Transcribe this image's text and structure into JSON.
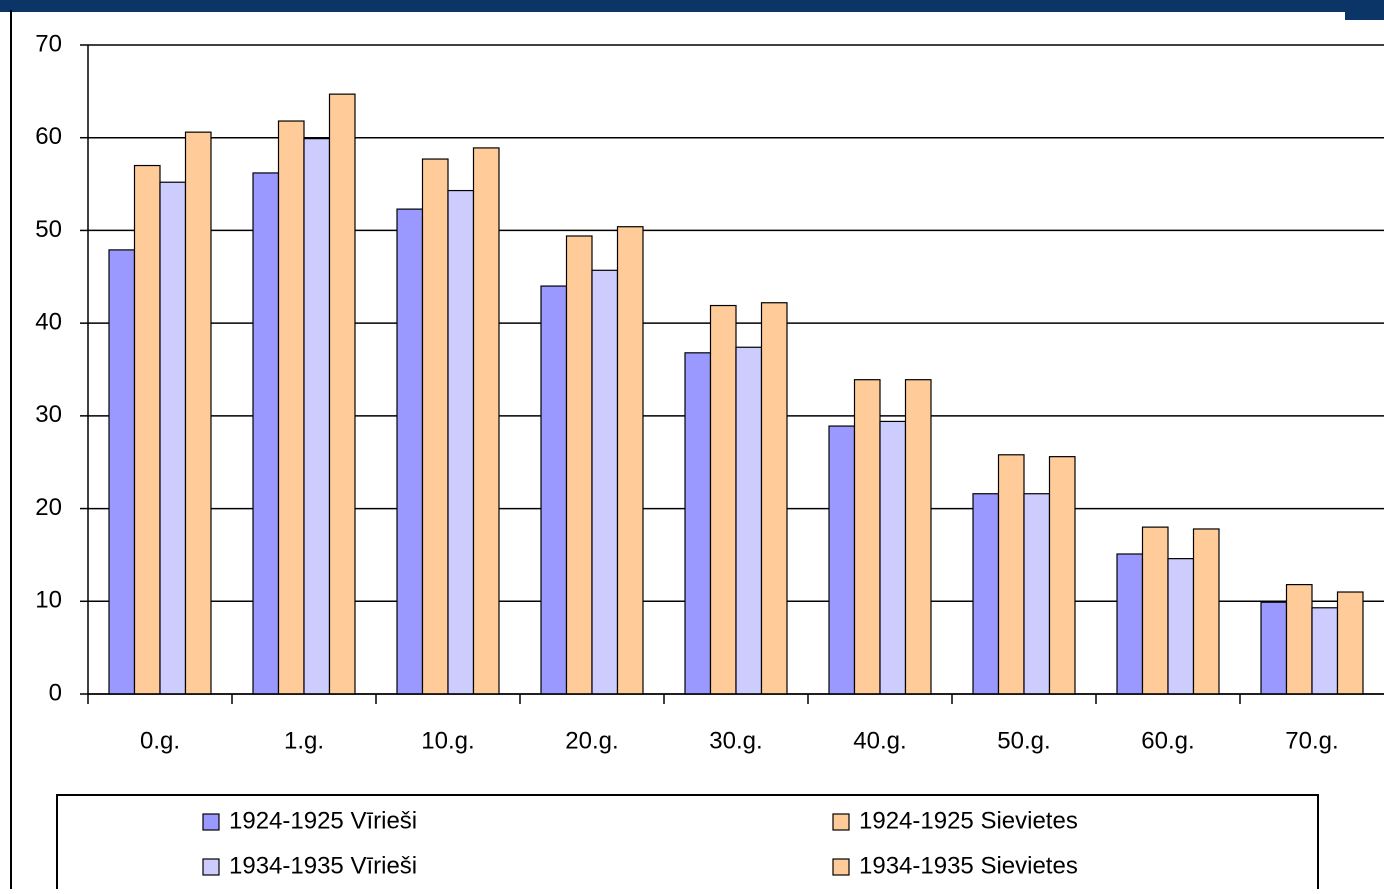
{
  "chart_data": {
    "type": "bar",
    "categories": [
      "0.g.",
      "1.g.",
      "10.g.",
      "20.g.",
      "30.g.",
      "40.g.",
      "50.g.",
      "60.g.",
      "70.g."
    ],
    "series": [
      {
        "name": "1924-1925 Vīrieši",
        "color": "#9999ff",
        "values": [
          47.9,
          56.2,
          52.3,
          44.0,
          36.8,
          28.9,
          21.6,
          15.1,
          9.9
        ]
      },
      {
        "name": "1924-1925 Sievietes",
        "color": "#ffcc99",
        "values": [
          57.0,
          61.8,
          57.7,
          49.4,
          41.9,
          33.9,
          25.8,
          18.0,
          11.8
        ]
      },
      {
        "name": "1934-1935 Vīrieši",
        "color": "#ccccff",
        "values": [
          55.2,
          59.9,
          54.3,
          45.7,
          37.4,
          29.4,
          21.6,
          14.6,
          9.3
        ]
      },
      {
        "name": "1934-1935 Sievietes",
        "color": "#ffcc99",
        "values": [
          60.6,
          64.7,
          58.9,
          50.4,
          42.2,
          33.9,
          25.6,
          17.8,
          11.0
        ]
      }
    ],
    "ylim": [
      0,
      70
    ],
    "yticks": [
      0,
      10,
      20,
      30,
      40,
      50,
      60,
      70
    ],
    "grid": true,
    "legend": "bottom"
  }
}
